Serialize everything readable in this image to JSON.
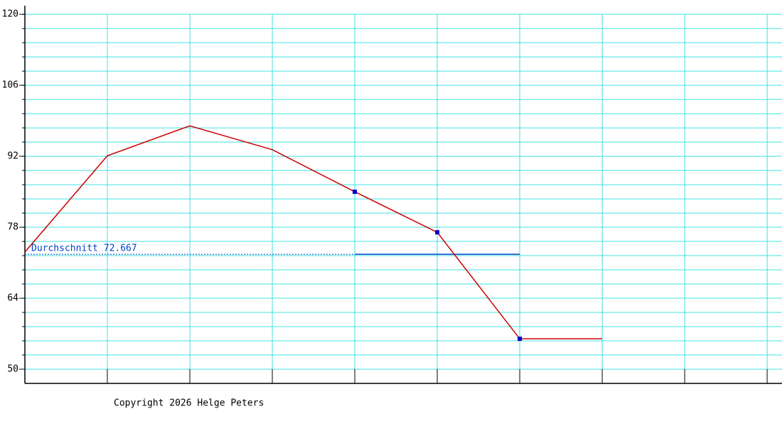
{
  "chart_data": {
    "type": "line",
    "x": [
      0,
      1,
      2,
      3,
      4,
      5,
      6,
      7
    ],
    "series": [
      {
        "color": "#cc0000",
        "values": [
          73.1,
          92.1,
          98.0,
          93.3,
          85.0,
          77.0,
          56.0,
          56.0
        ],
        "markers": [
          false,
          false,
          false,
          false,
          true,
          true,
          true,
          false
        ],
        "marker_color": "#0000cc"
      }
    ],
    "xlim": [
      0,
      9.18
    ],
    "xgrid": [
      1,
      2,
      3,
      4,
      5,
      6,
      7,
      8,
      9
    ],
    "ylim": [
      47.2,
      121.7
    ],
    "yticks": [
      50,
      64,
      78,
      92,
      106,
      120
    ],
    "ygrid": [
      50,
      52.8,
      55.6,
      58.4,
      61.2,
      64,
      66.8,
      69.6,
      72.4,
      75.2,
      78,
      80.8,
      83.6,
      86.4,
      89.2,
      92,
      94.8,
      97.6,
      100.4,
      103.2,
      106,
      108.8,
      111.6,
      114.4,
      117.2,
      120
    ],
    "grid_color": "#40e0e0",
    "average": 72.667,
    "average_label": "Durchschnitt 72.667",
    "average_color": "#0044cc",
    "average_span": [
      0,
      6
    ],
    "average_solid_from": 4,
    "footer": "Copyright 2026 Helge Peters"
  }
}
